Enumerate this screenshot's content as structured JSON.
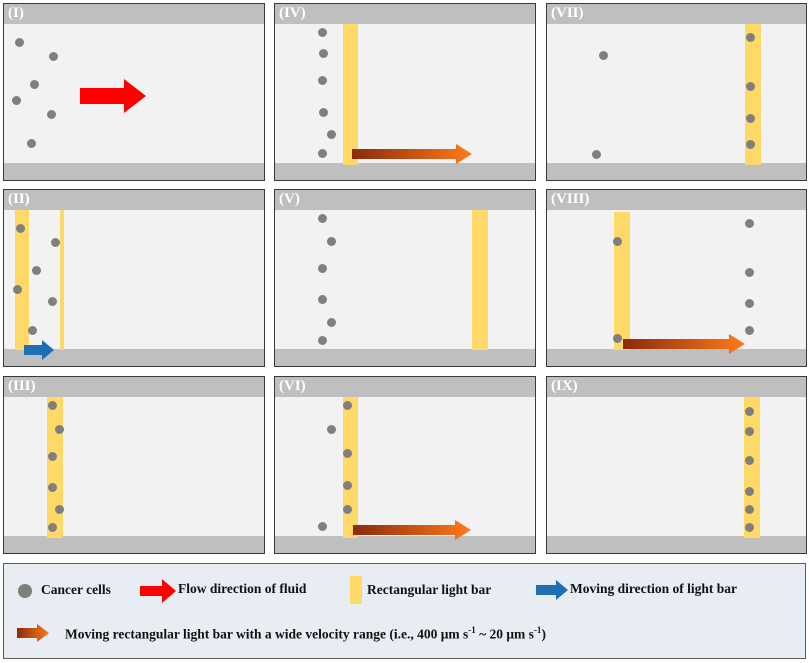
{
  "panels": [
    {
      "label": "(I)"
    },
    {
      "label": "(IV)"
    },
    {
      "label": "(VII)"
    },
    {
      "label": "(II)"
    },
    {
      "label": "(V)"
    },
    {
      "label": "(VIII)"
    },
    {
      "label": "(III)"
    },
    {
      "label": "(VI)"
    },
    {
      "label": "(IX)"
    }
  ],
  "legend": {
    "cancer_cells": "Cancer cells",
    "flow_direction": "Flow direction of fluid",
    "light_bar": "Rectangular light bar",
    "moving_direction": "Moving direction of  light bar",
    "moving_wide_range": "Moving rectangular light bar with a wide velocity range (i.e., 400 μm s",
    "sup1": "-1",
    "range_mid": " ~ 20 μm s",
    "sup2": "-1",
    "range_end": ")"
  },
  "colors": {
    "cell": "#7f7f7f",
    "light_bar": "#ffd966",
    "flow_arrow": "#ff0000",
    "moving_arrow": "#1f6fb5",
    "wide_range_arrow_start": "#8b2a0c",
    "wide_range_arrow_end": "#ff7a1a",
    "wall": "#bfbfbf",
    "channel": "#f2f2f2"
  }
}
